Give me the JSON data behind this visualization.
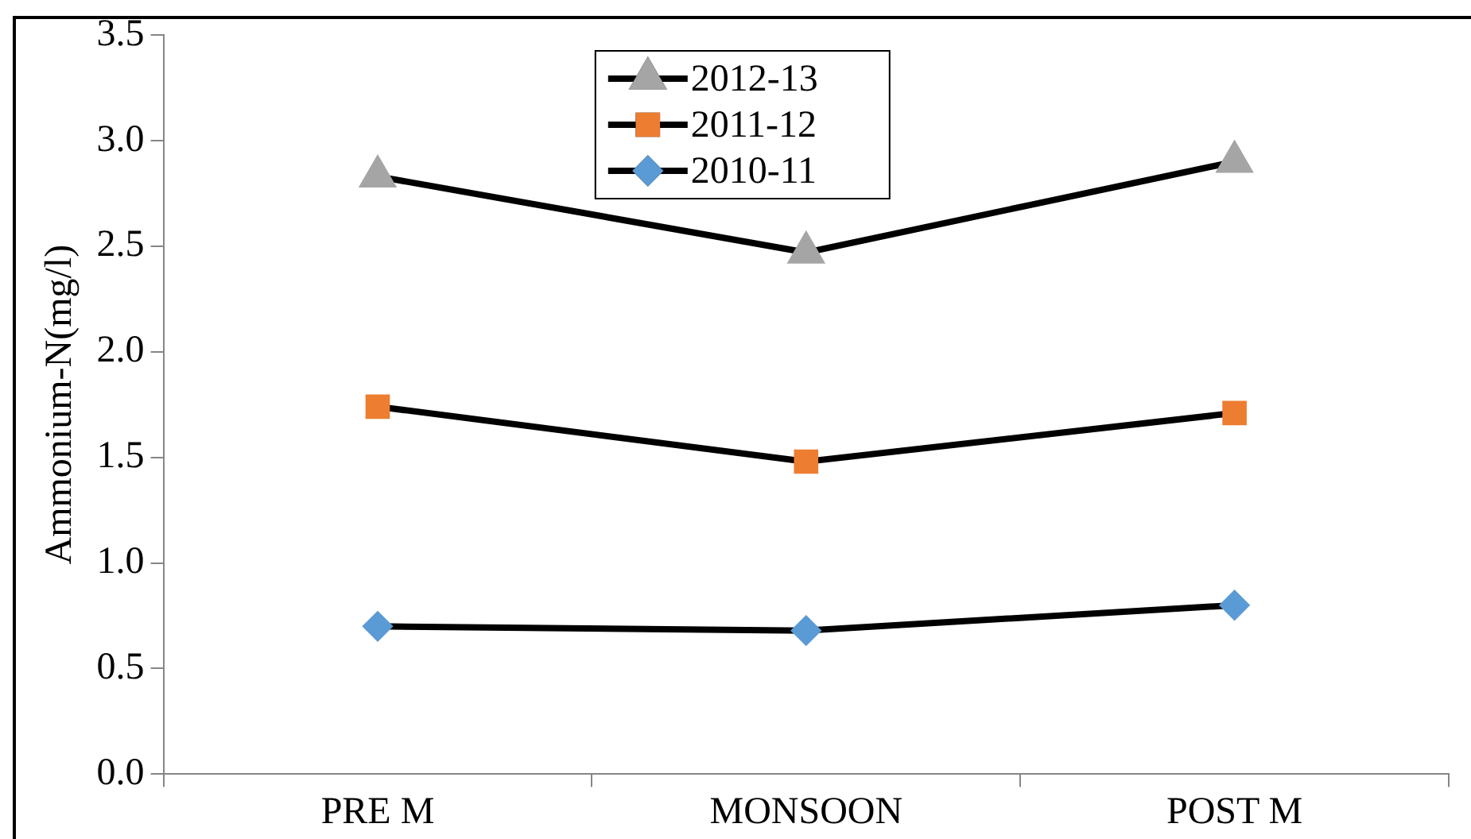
{
  "chart_data": {
    "type": "line",
    "ylabel": "Ammonium-N(mg/l)",
    "categories": [
      "PRE M",
      "MONSOON",
      "POST M"
    ],
    "ylim": [
      0,
      3.5
    ],
    "yticks": [
      {
        "value": 0,
        "label": "0.0"
      },
      {
        "value": 0.5,
        "label": "0.5"
      },
      {
        "value": 1,
        "label": "1.0"
      },
      {
        "value": 1.5,
        "label": "1.5"
      },
      {
        "value": 2,
        "label": "2.0"
      },
      {
        "value": 2.5,
        "label": "2.5"
      },
      {
        "value": 3,
        "label": "3.0"
      },
      {
        "value": 3.5,
        "label": "3.5"
      }
    ],
    "grid": false,
    "legend": "top",
    "line_style": "solid",
    "series": [
      {
        "name": "2012-13",
        "color": "#a5a5a5",
        "marker": "triangle",
        "values": [
          2.83,
          2.47,
          2.9
        ]
      },
      {
        "name": "2011-12",
        "color": "#ed7d31",
        "marker": "square",
        "values": [
          1.74,
          1.48,
          1.71
        ]
      },
      {
        "name": "2010-11",
        "color": "#5b9bd5",
        "marker": "diamond",
        "values": [
          0.7,
          0.68,
          0.8
        ]
      }
    ]
  }
}
